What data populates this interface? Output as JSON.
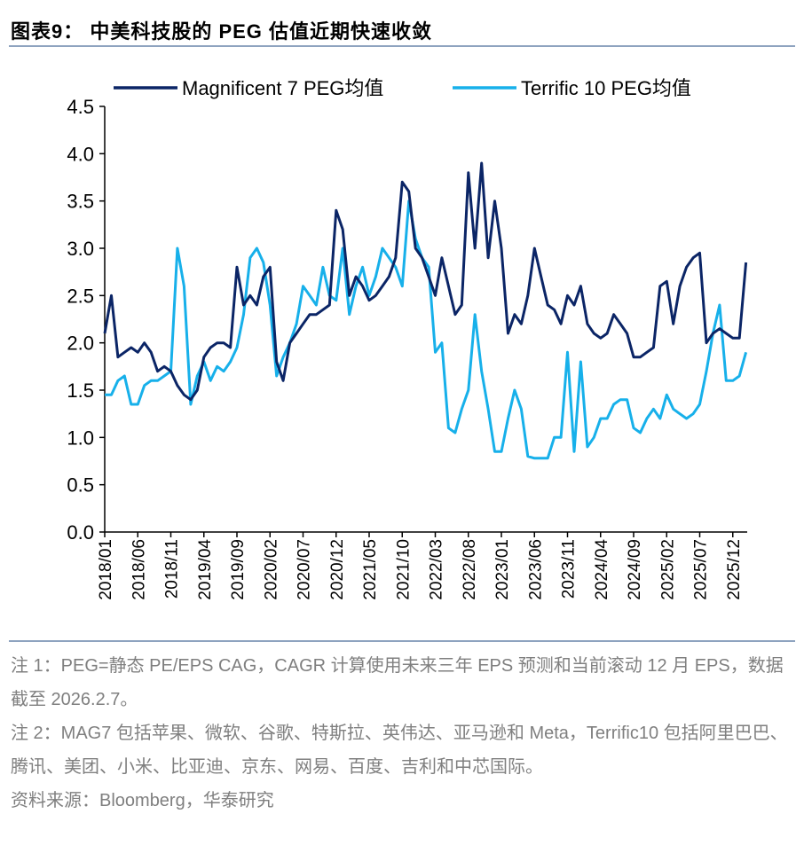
{
  "title": "图表9： 中美科技股的 PEG 估值近期快速收敛",
  "notes": [
    "注 1：PEG=静态 PE/EPS CAG，CAGR 计算使用未来三年 EPS 预测和当前滚动 12 月 EPS，数据截至 2026.2.7。",
    "注 2：MAG7 包括苹果、微软、谷歌、特斯拉、英伟达、亚马逊和 Meta，Terrific10 包括阿里巴巴、腾讯、美团、小米、比亚迪、京东、网易、百度、吉利和中芯国际。",
    "资料来源：Bloomberg，华泰研究"
  ],
  "chart_data": {
    "type": "line",
    "title": "",
    "xlabel": "",
    "ylabel": "",
    "ylim": [
      0,
      4.5
    ],
    "yticks": [
      "0.0",
      "0.5",
      "1.0",
      "1.5",
      "2.0",
      "2.5",
      "3.0",
      "3.5",
      "4.0",
      "4.5"
    ],
    "xticks": [
      "2018/01",
      "2018/06",
      "2018/11",
      "2019/04",
      "2019/09",
      "2020/02",
      "2020/07",
      "2020/12",
      "2021/05",
      "2021/10",
      "2022/03",
      "2022/08",
      "2023/01",
      "2023/06",
      "2023/11",
      "2024/04",
      "2024/09",
      "2025/02",
      "2025/07",
      "2025/12"
    ],
    "grid": false,
    "legend": "top",
    "x": [
      "2018/01",
      "2018/02",
      "2018/03",
      "2018/04",
      "2018/05",
      "2018/06",
      "2018/07",
      "2018/08",
      "2018/09",
      "2018/10",
      "2018/11",
      "2018/12",
      "2019/01",
      "2019/02",
      "2019/03",
      "2019/04",
      "2019/05",
      "2019/06",
      "2019/07",
      "2019/08",
      "2019/09",
      "2019/10",
      "2019/11",
      "2019/12",
      "2020/01",
      "2020/02",
      "2020/03",
      "2020/04",
      "2020/05",
      "2020/06",
      "2020/07",
      "2020/08",
      "2020/09",
      "2020/10",
      "2020/11",
      "2020/12",
      "2021/01",
      "2021/02",
      "2021/03",
      "2021/04",
      "2021/05",
      "2021/06",
      "2021/07",
      "2021/08",
      "2021/09",
      "2021/10",
      "2021/11",
      "2021/12",
      "2022/01",
      "2022/02",
      "2022/03",
      "2022/04",
      "2022/05",
      "2022/06",
      "2022/07",
      "2022/08",
      "2022/09",
      "2022/10",
      "2022/11",
      "2022/12",
      "2023/01",
      "2023/02",
      "2023/03",
      "2023/04",
      "2023/05",
      "2023/06",
      "2023/07",
      "2023/08",
      "2023/09",
      "2023/10",
      "2023/11",
      "2023/12",
      "2024/01",
      "2024/02",
      "2024/03",
      "2024/04",
      "2024/05",
      "2024/06",
      "2024/07",
      "2024/08",
      "2024/09",
      "2024/10",
      "2024/11",
      "2024/12",
      "2025/01",
      "2025/02",
      "2025/03",
      "2025/04",
      "2025/05",
      "2025/06",
      "2025/07",
      "2025/08",
      "2025/09",
      "2025/10",
      "2025/11",
      "2025/12",
      "2026/01",
      "2026/02"
    ],
    "series": [
      {
        "name": "Magnificent 7 PEG均值",
        "color": "#0b2566",
        "values": [
          2.1,
          2.5,
          1.85,
          1.9,
          1.95,
          1.9,
          2.0,
          1.9,
          1.7,
          1.75,
          1.7,
          1.55,
          1.45,
          1.4,
          1.5,
          1.85,
          1.95,
          2.0,
          2.0,
          1.95,
          2.8,
          2.4,
          2.5,
          2.4,
          2.7,
          2.8,
          1.8,
          1.6,
          2.0,
          2.1,
          2.2,
          2.3,
          2.3,
          2.35,
          2.4,
          3.4,
          3.2,
          2.5,
          2.7,
          2.6,
          2.45,
          2.5,
          2.6,
          2.7,
          2.9,
          3.7,
          3.6,
          3.0,
          2.9,
          2.7,
          2.5,
          2.9,
          2.6,
          2.3,
          2.4,
          3.8,
          3.0,
          3.9,
          2.9,
          3.5,
          3.0,
          2.1,
          2.3,
          2.2,
          2.5,
          3.0,
          2.7,
          2.4,
          2.35,
          2.2,
          2.5,
          2.4,
          2.6,
          2.2,
          2.1,
          2.05,
          2.1,
          2.3,
          2.2,
          2.1,
          1.85,
          1.85,
          1.9,
          1.95,
          2.6,
          2.65,
          2.2,
          2.6,
          2.8,
          2.9,
          2.95,
          2.0,
          2.1,
          2.15,
          2.1,
          2.05,
          2.05,
          2.85
        ]
      },
      {
        "name": "Terrific 10 PEG均值",
        "color": "#17b0ea",
        "values": [
          1.45,
          1.45,
          1.6,
          1.65,
          1.35,
          1.35,
          1.55,
          1.6,
          1.6,
          1.65,
          1.7,
          3.0,
          2.6,
          1.35,
          1.65,
          1.8,
          1.6,
          1.75,
          1.7,
          1.8,
          1.95,
          2.3,
          2.9,
          3.0,
          2.85,
          2.4,
          1.65,
          1.85,
          2.0,
          2.2,
          2.6,
          2.5,
          2.4,
          2.8,
          2.5,
          2.45,
          3.0,
          2.3,
          2.6,
          2.8,
          2.5,
          2.7,
          3.0,
          2.9,
          2.8,
          2.6,
          3.5,
          3.1,
          2.9,
          2.8,
          1.9,
          2.0,
          1.1,
          1.05,
          1.3,
          1.5,
          2.3,
          1.7,
          1.3,
          0.85,
          0.85,
          1.2,
          1.5,
          1.3,
          0.8,
          0.78,
          0.78,
          0.78,
          1.0,
          1.0,
          1.9,
          0.85,
          1.8,
          0.9,
          1.0,
          1.2,
          1.2,
          1.35,
          1.4,
          1.4,
          1.1,
          1.05,
          1.2,
          1.3,
          1.2,
          1.45,
          1.3,
          1.25,
          1.2,
          1.25,
          1.35,
          1.7,
          2.1,
          2.4,
          1.6,
          1.6,
          1.65,
          1.9
        ]
      }
    ]
  }
}
